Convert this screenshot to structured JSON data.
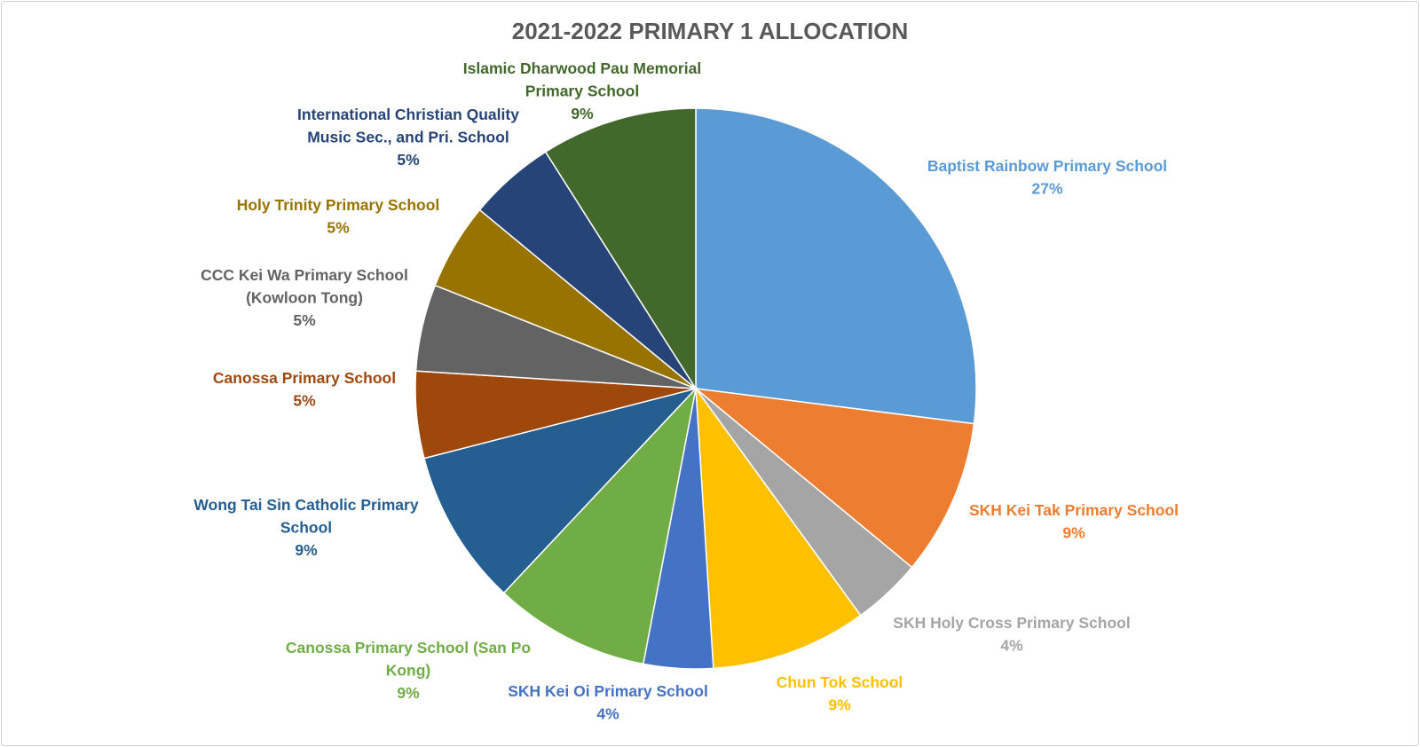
{
  "chart_data": {
    "type": "pie",
    "title": "2021-2022 PRIMARY 1 ALLOCATION",
    "slices": [
      {
        "label": "Baptist Rainbow Primary School",
        "value": 27,
        "pct_label": "27%",
        "color": "#5B9BD5"
      },
      {
        "label": "SKH Kei Tak Primary School",
        "value": 9,
        "pct_label": "9%",
        "color": "#ED7D31"
      },
      {
        "label": "SKH Holy Cross Primary School",
        "value": 4,
        "pct_label": "4%",
        "color": "#A5A5A5"
      },
      {
        "label": "Chun Tok School",
        "value": 9,
        "pct_label": "9%",
        "color": "#FFC000"
      },
      {
        "label": "SKH Kei Oi Primary School",
        "value": 4,
        "pct_label": "4%",
        "color": "#4472C4"
      },
      {
        "label": "Canossa Primary School (San Po Kong)",
        "value": 9,
        "pct_label": "9%",
        "color": "#70AD47"
      },
      {
        "label": "Wong Tai Sin Catholic Primary School",
        "value": 9,
        "pct_label": "9%",
        "color": "#255E91"
      },
      {
        "label": "Canossa Primary School",
        "value": 5,
        "pct_label": "5%",
        "color": "#9E480E"
      },
      {
        "label": "CCC Kei Wa Primary School (Kowloon Tong)",
        "value": 5,
        "pct_label": "5%",
        "color": "#636363"
      },
      {
        "label": "Holy Trinity Primary School",
        "value": 5,
        "pct_label": "5%",
        "color": "#997300"
      },
      {
        "label": "International Christian Quality Music Sec., and Pri. School",
        "value": 5,
        "pct_label": "5%",
        "color": "#264478"
      },
      {
        "label": "Islamic Dharwood Pau Memorial Primary School",
        "value": 9,
        "pct_label": "9%",
        "color": "#43682B"
      }
    ]
  }
}
